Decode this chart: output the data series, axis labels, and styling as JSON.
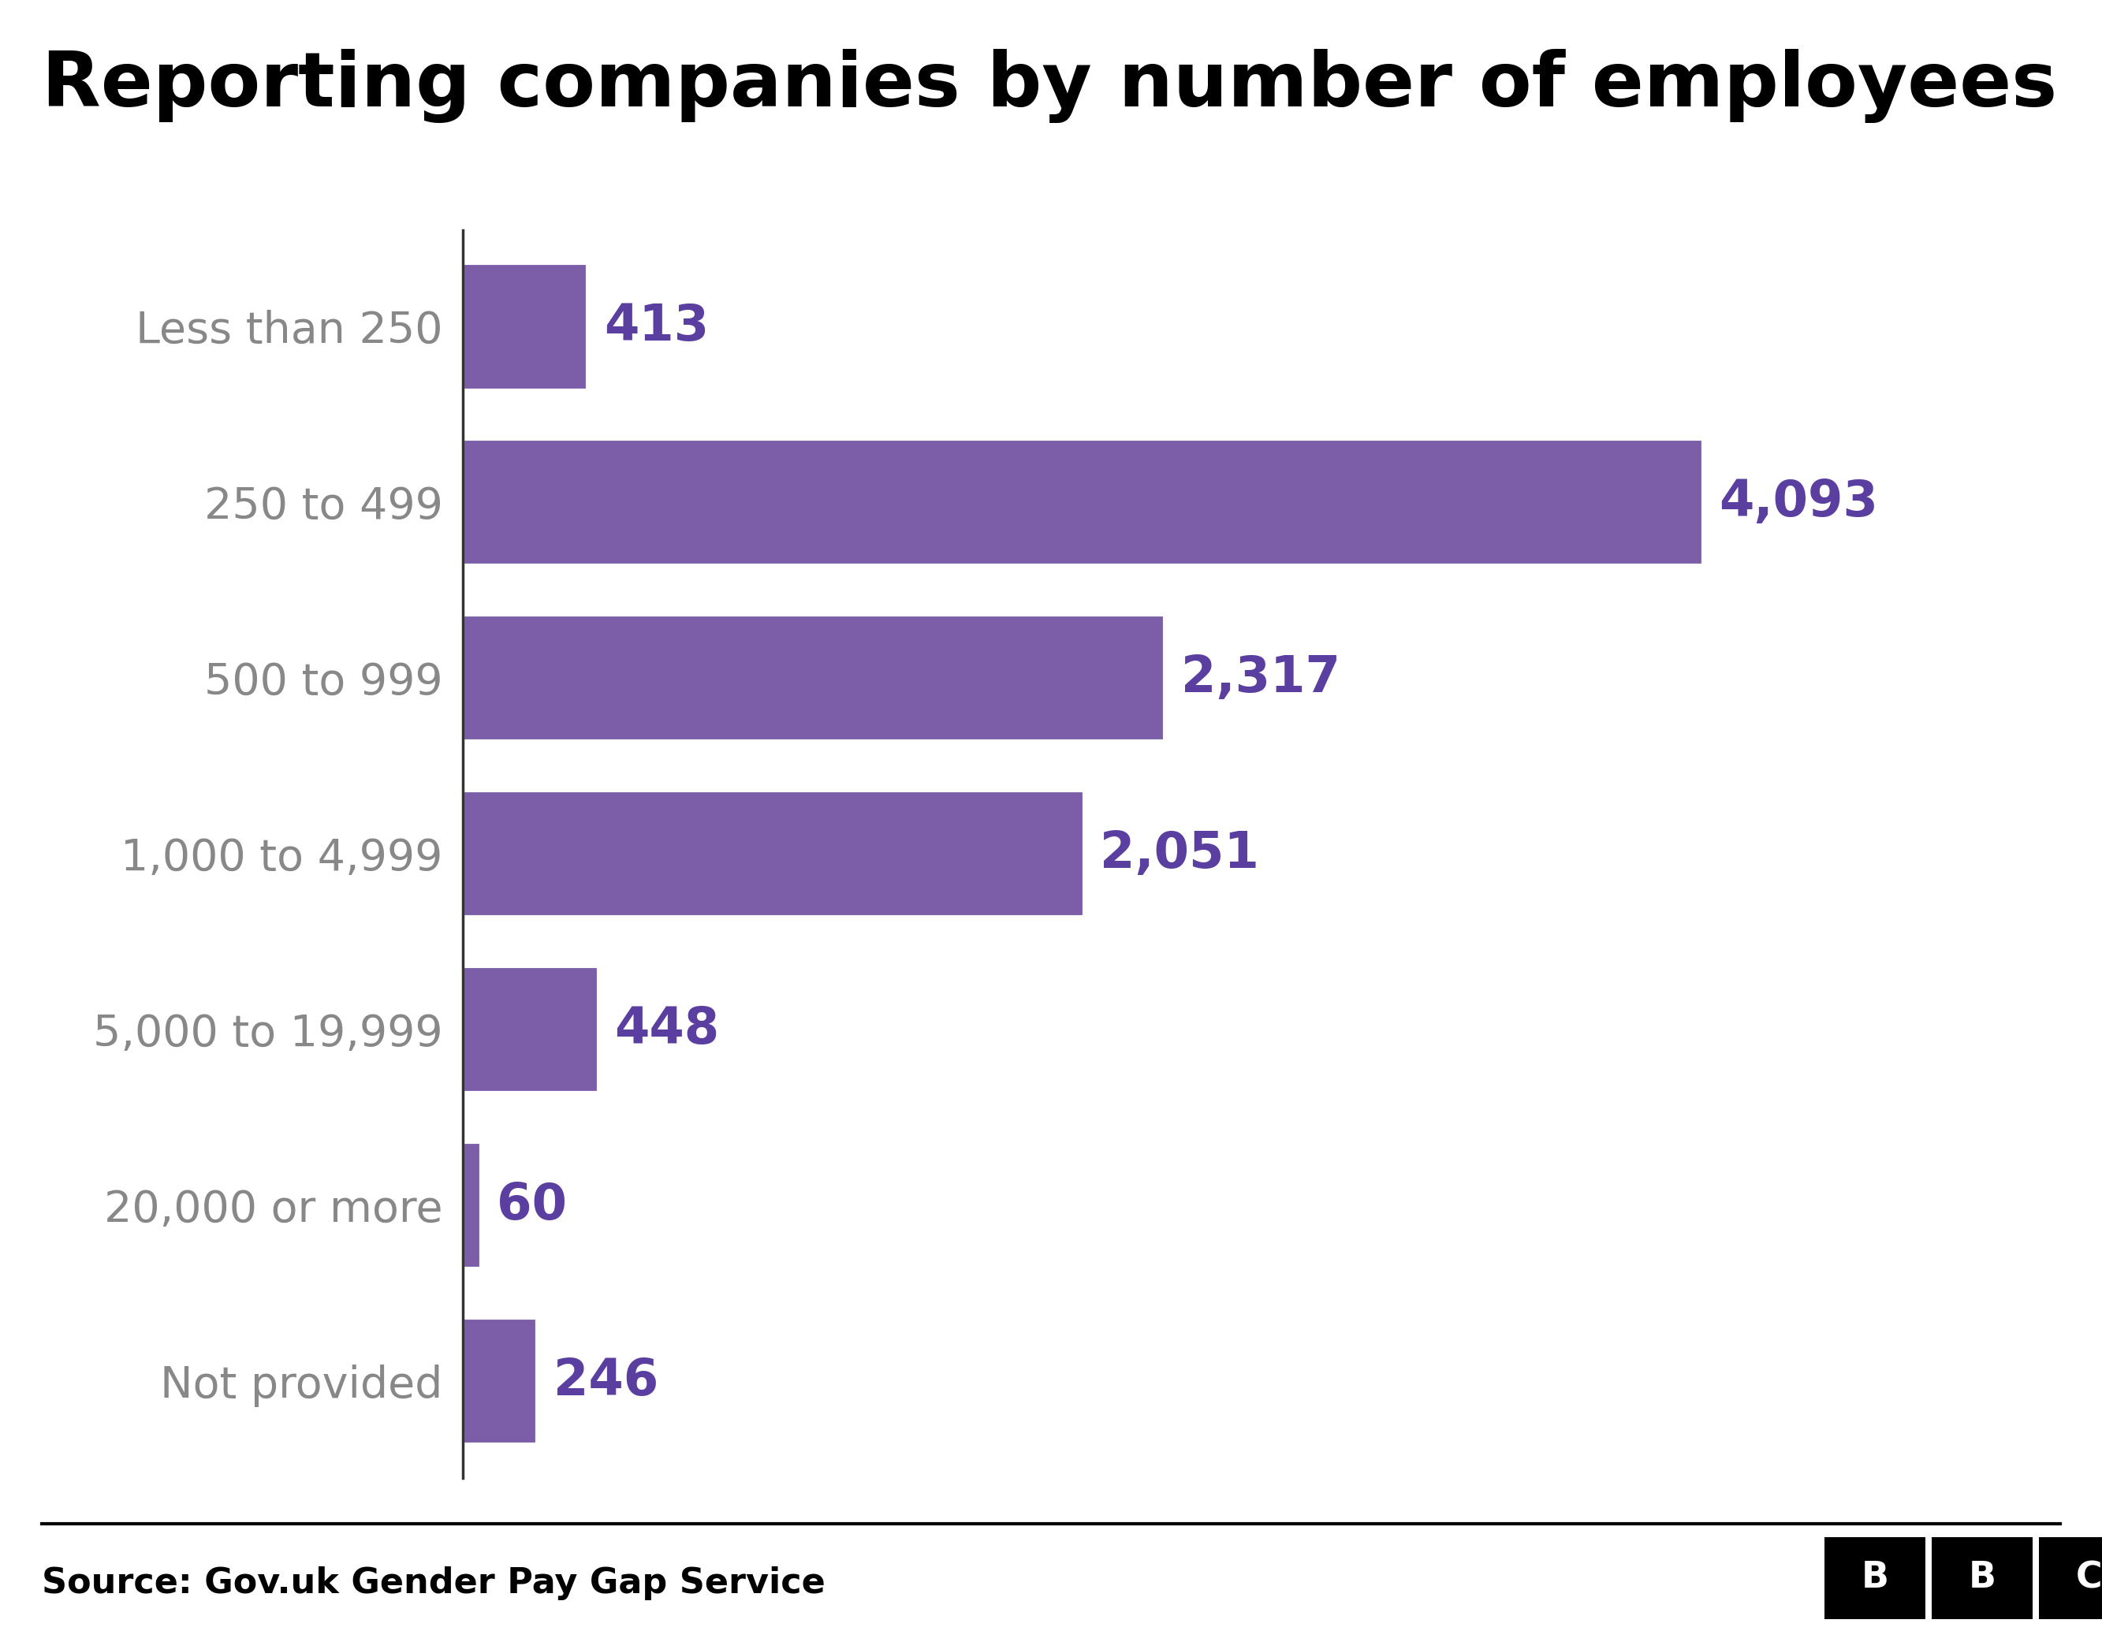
{
  "title": "Reporting companies by number of employees",
  "categories": [
    "Less than 250",
    "250 to 499",
    "500 to 999",
    "1,000 to 4,999",
    "5,000 to 19,999",
    "20,000 or more",
    "Not provided"
  ],
  "values": [
    413,
    4093,
    2317,
    2051,
    448,
    60,
    246
  ],
  "labels": [
    "413",
    "4,093",
    "2,317",
    "2,051",
    "448",
    "60",
    "246"
  ],
  "bar_color": "#7B5EA7",
  "label_color": "#5B3FA0",
  "title_color": "#000000",
  "source_text": "Source: Gov.uk Gender Pay Gap Service",
  "background_color": "#ffffff",
  "title_fontsize": 70,
  "label_fontsize": 46,
  "tick_fontsize": 40,
  "source_fontsize": 32
}
